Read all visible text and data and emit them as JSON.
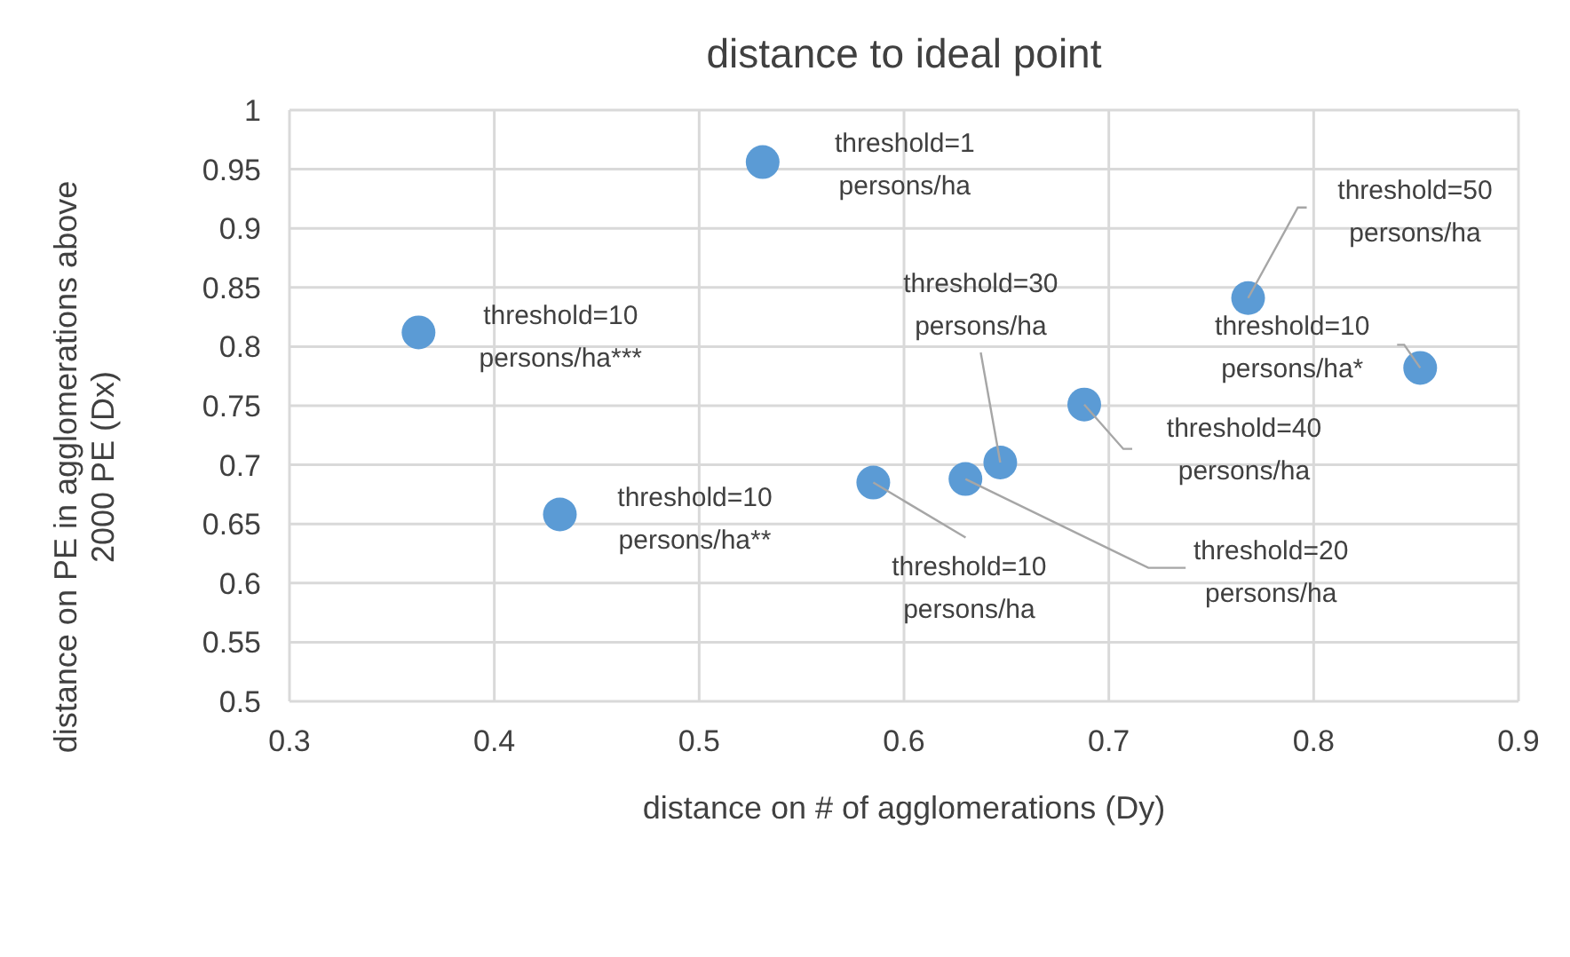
{
  "chart_data": {
    "type": "scatter",
    "title": "distance to ideal point",
    "xlabel": "distance on # of agglomerations (Dy)",
    "ylabel": "distance on PE in agglomerations above 2000 PE (Dx)",
    "x": [
      0.531,
      0.363,
      0.432,
      0.585,
      0.63,
      0.647,
      0.688,
      0.768,
      0.852
    ],
    "values": [
      0.956,
      0.812,
      0.658,
      0.685,
      0.688,
      0.702,
      0.751,
      0.841,
      0.782
    ],
    "color": "#5b9bd5",
    "marker": "circle",
    "grid": true,
    "xlim": [
      0.3,
      0.9
    ],
    "xticks": [
      0.3,
      0.4,
      0.5,
      0.6,
      0.7,
      0.8,
      0.9
    ],
    "ylim": [
      0.5,
      1
    ],
    "yticks": [
      0.5,
      0.55,
      0.6,
      0.65,
      0.7,
      0.75,
      0.8,
      0.85,
      0.9,
      0.95,
      1
    ],
    "annotations": [
      {
        "text": "threshold=1\npersons/ha",
        "x": 0.531,
        "y": 0.956
      },
      {
        "text": "threshold=10\npersons/ha***",
        "x": 0.363,
        "y": 0.812
      },
      {
        "text": "threshold=10\npersons/ha**",
        "x": 0.432,
        "y": 0.658
      },
      {
        "text": "threshold=10\npersons/ha",
        "x": 0.585,
        "y": 0.685
      },
      {
        "text": "threshold=20\npersons/ha",
        "x": 0.63,
        "y": 0.688
      },
      {
        "text": "threshold=30\npersons/ha",
        "x": 0.647,
        "y": 0.702
      },
      {
        "text": "threshold=40\npersons/ha",
        "x": 0.688,
        "y": 0.751
      },
      {
        "text": "threshold=50\npersons/ha",
        "x": 0.768,
        "y": 0.841
      },
      {
        "text": "threshold=10\npersons/ha*",
        "x": 0.852,
        "y": 0.782
      }
    ]
  }
}
